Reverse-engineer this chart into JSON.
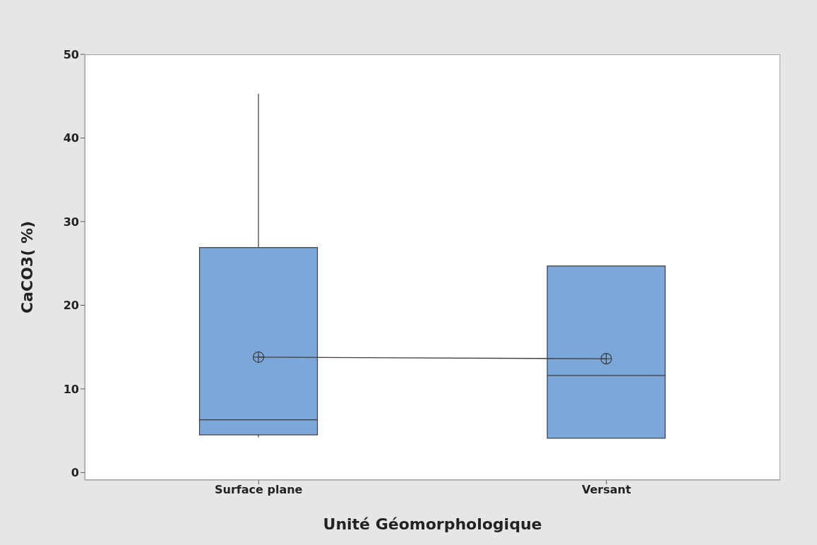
{
  "chart_data": {
    "type": "box",
    "xlabel": "Unité Géomorphologique",
    "ylabel": "CaCO3( %)",
    "categories": [
      "Surface plane",
      "Versant"
    ],
    "boxes": [
      {
        "low": 4.2,
        "q1": 4.5,
        "median": 6.3,
        "q3": 26.9,
        "high": 45.3,
        "mean": 13.8
      },
      {
        "low": 4.1,
        "q1": 4.1,
        "median": 11.6,
        "q3": 24.7,
        "high": 24.7,
        "mean": 13.6
      }
    ],
    "color": "#7ba7d9",
    "series": [
      {
        "type": "line",
        "color": "#404040",
        "values": [
          13.8,
          13.6
        ]
      }
    ],
    "ylim": [
      -0.9,
      50
    ],
    "yticks": [
      0,
      10,
      20,
      30,
      40,
      50
    ]
  }
}
